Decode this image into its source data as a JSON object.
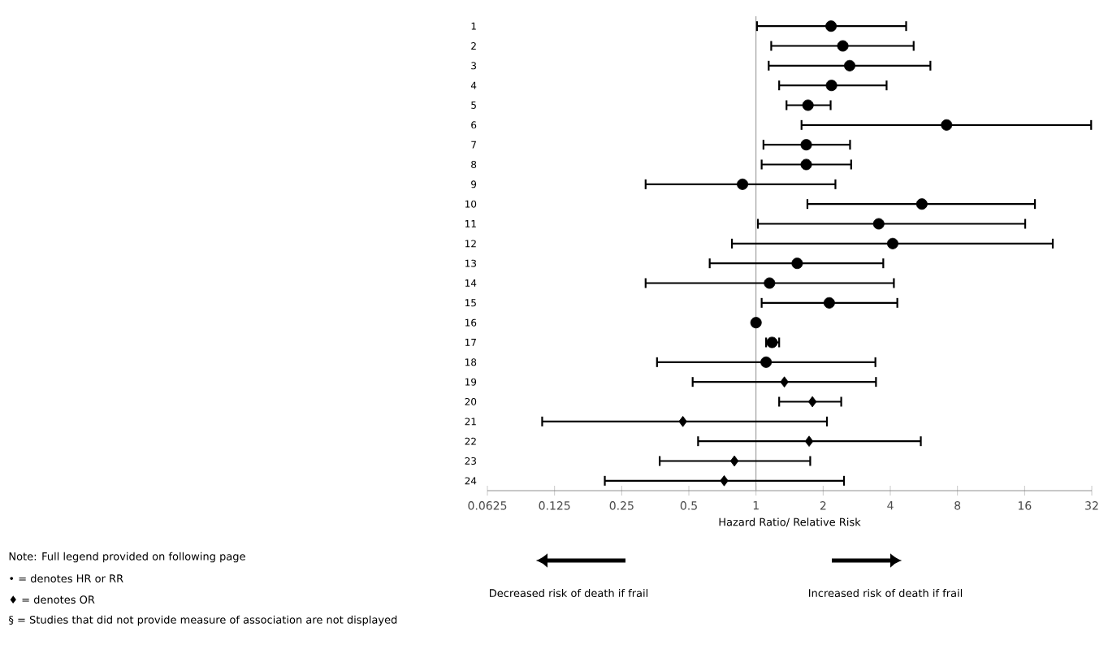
{
  "chart_data": {
    "type": "scatter",
    "orientation": "horizontal",
    "log": "x",
    "xlabel": "Hazard Ratio/ Relative Risk",
    "categories": [
      "1",
      "2",
      "3",
      "4",
      "5",
      "6",
      "7",
      "8",
      "9",
      "10",
      "11",
      "12",
      "13",
      "14",
      "15",
      "16",
      "17",
      "18",
      "19",
      "20",
      "21",
      "22",
      "23",
      "24"
    ],
    "xlim": [
      0.0625,
      32
    ],
    "xticks": [
      0.0625,
      0.125,
      0.25,
      0.5,
      1,
      2,
      4,
      8,
      16,
      32
    ],
    "series": [
      {
        "color": "#000000",
        "marker": "circle",
        "values": [
          2.17,
          2.45,
          2.63,
          2.18,
          1.71,
          7.15,
          1.68,
          1.68,
          0.87,
          5.54,
          3.55,
          4.1,
          1.53,
          1.15,
          2.13,
          1.0,
          1.18,
          1.11,
          null,
          null,
          null,
          null,
          null,
          null
        ],
        "errors": [
          [
            1.01,
            4.71
          ],
          [
            1.17,
            5.09
          ],
          [
            1.14,
            6.05
          ],
          [
            1.27,
            3.85
          ],
          [
            1.37,
            2.16
          ],
          [
            1.6,
            31.8
          ],
          [
            1.08,
            2.64
          ],
          [
            1.06,
            2.67
          ],
          [
            0.32,
            2.27
          ],
          [
            1.7,
            17.8
          ],
          [
            1.02,
            16.1
          ],
          [
            0.78,
            21.4
          ],
          [
            0.62,
            3.72
          ],
          [
            0.32,
            4.15
          ],
          [
            1.06,
            4.3
          ],
          null,
          [
            1.11,
            1.27
          ],
          [
            0.36,
            3.43
          ],
          null,
          null,
          null,
          null,
          null,
          null
        ]
      },
      {
        "color": "#000000",
        "marker": "diamond",
        "values": [
          null,
          null,
          null,
          null,
          null,
          null,
          null,
          null,
          null,
          null,
          null,
          null,
          null,
          null,
          null,
          null,
          null,
          null,
          1.34,
          1.79,
          0.47,
          1.73,
          0.8,
          0.72
        ],
        "errors": [
          null,
          null,
          null,
          null,
          null,
          null,
          null,
          null,
          null,
          null,
          null,
          null,
          null,
          null,
          null,
          null,
          null,
          null,
          [
            0.52,
            3.45
          ],
          [
            1.27,
            2.41
          ],
          [
            0.11,
            2.08
          ],
          [
            0.55,
            5.48
          ],
          [
            0.37,
            1.75
          ],
          [
            0.21,
            2.48
          ]
        ]
      }
    ],
    "ref_lines": [
      {
        "axis": "x",
        "value": 1,
        "color": "#a6a6a6"
      }
    ],
    "annotations": [
      "Decreased risk of death if frail",
      "Increased risk of death if frail",
      "Note: Full legend provided on following page",
      "• = denotes HR or RR",
      "♦ = denotes OR",
      "§ = Studies that did not provide measure of association are not displayed"
    ]
  }
}
